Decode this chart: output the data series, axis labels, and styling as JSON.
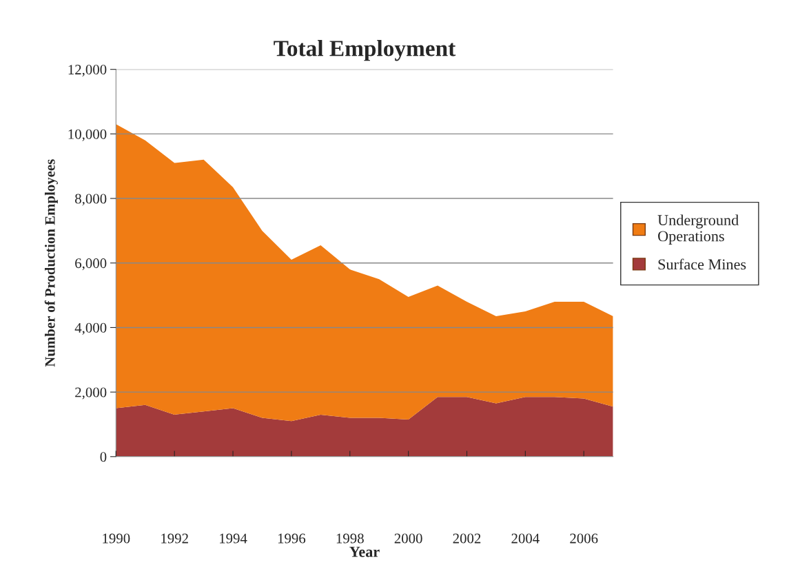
{
  "chart_data": {
    "type": "area",
    "stacked": true,
    "title": "Total Employment",
    "xlabel": "Year",
    "ylabel": "Number of Production Employees",
    "x": [
      1990,
      1991,
      1992,
      1993,
      1994,
      1995,
      1996,
      1997,
      1998,
      1999,
      2000,
      2001,
      2002,
      2003,
      2004,
      2005,
      2006,
      2007
    ],
    "series": [
      {
        "name": "Surface Mines",
        "color": "#a33b3b",
        "values": [
          1500,
          1600,
          1300,
          1400,
          1500,
          1200,
          1100,
          1300,
          1200,
          1200,
          1150,
          1850,
          1850,
          1650,
          1850,
          1850,
          1800,
          1550
        ]
      },
      {
        "name": "Underground Operations",
        "color": "#f07c14",
        "values": [
          8800,
          8200,
          7800,
          7800,
          6850,
          5800,
          5000,
          5250,
          4600,
          4300,
          3800,
          3450,
          2950,
          2700,
          2650,
          2950,
          3000,
          2800
        ]
      }
    ],
    "xlim": [
      1990,
      2007
    ],
    "xticks": [
      1990,
      1992,
      1994,
      1996,
      1998,
      2000,
      2002,
      2004,
      2006
    ],
    "ylim": [
      0,
      12000
    ],
    "yticks": [
      {
        "value": 0,
        "label": "0"
      },
      {
        "value": 2000,
        "label": "2,000"
      },
      {
        "value": 4000,
        "label": "4,000"
      },
      {
        "value": 6000,
        "label": "6,000"
      },
      {
        "value": 8000,
        "label": "8,000"
      },
      {
        "value": 10000,
        "label": "10,000"
      },
      {
        "value": 12000,
        "label": "12,000"
      }
    ],
    "grid": "y",
    "legend": "right"
  }
}
